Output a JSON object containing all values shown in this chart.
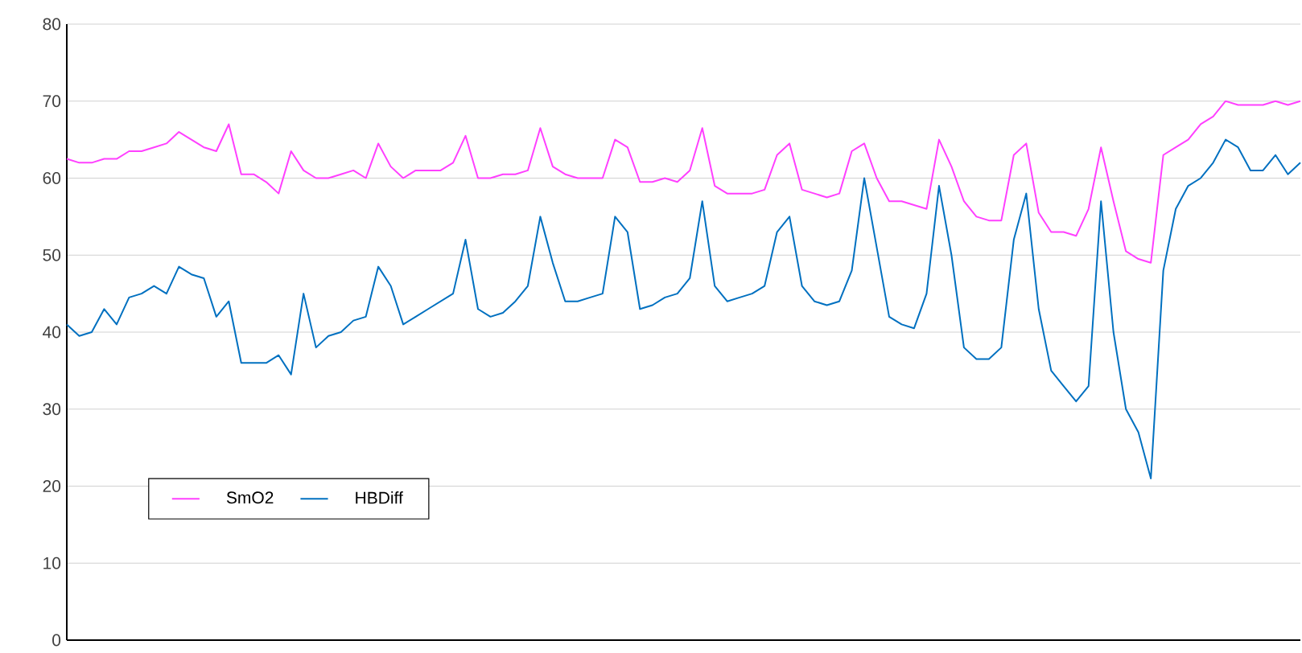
{
  "chart_data": {
    "type": "line",
    "categories": [
      null,
      null,
      null,
      null,
      null,
      null,
      null,
      null,
      null,
      null,
      null,
      null,
      null,
      null,
      null,
      null,
      null,
      null,
      null,
      null,
      null,
      null,
      null,
      null,
      null,
      null,
      null,
      null,
      null,
      null,
      null,
      null,
      null,
      null,
      null,
      null,
      null,
      null,
      null,
      null,
      null,
      null,
      null,
      null,
      null,
      null,
      null,
      null,
      null,
      null,
      null,
      null,
      null,
      null,
      null,
      null,
      null,
      null,
      null,
      null,
      null,
      null,
      null,
      null,
      null,
      null,
      null,
      null,
      null,
      null,
      null,
      null,
      null,
      null,
      null,
      null,
      null,
      null,
      null,
      null,
      null,
      null,
      null,
      null,
      null,
      null,
      null,
      null,
      null,
      null,
      null,
      null,
      null,
      null,
      null,
      null,
      null,
      null,
      null,
      null
    ],
    "series": [
      {
        "name": "SmO2",
        "color": "#ff40ff",
        "values": [
          62.5,
          62,
          62,
          62.5,
          62.5,
          63.5,
          63.5,
          64,
          64.5,
          66,
          65,
          64,
          63.5,
          67,
          60.5,
          60.5,
          59.5,
          58,
          63.5,
          61,
          60,
          60,
          60.5,
          61,
          60,
          64.5,
          61.5,
          60,
          61,
          61,
          61,
          62,
          65.5,
          60,
          60,
          60.5,
          60.5,
          61,
          66.5,
          61.5,
          60.5,
          60,
          60,
          60,
          65,
          64,
          59.5,
          59.5,
          60,
          59.5,
          61,
          66.5,
          59,
          58,
          58,
          58,
          58.5,
          63,
          64.5,
          58.5,
          58,
          57.5,
          58,
          63.5,
          64.5,
          60,
          57,
          57,
          56.5,
          56,
          65,
          61.5,
          57,
          55,
          54.5,
          54.5,
          63,
          64.5,
          55.5,
          53,
          53,
          52.5,
          56,
          64,
          57,
          50.5,
          49.5,
          49,
          63,
          64,
          65,
          67,
          68,
          70,
          69.5,
          69.5,
          69.5,
          70,
          69.5,
          70
        ]
      },
      {
        "name": "HBDiff",
        "color": "#0070c0",
        "values": [
          41,
          39.5,
          40,
          43,
          41,
          44.5,
          45,
          46,
          45,
          48.5,
          47.5,
          47,
          42,
          44,
          36,
          36,
          36,
          37,
          34.5,
          45,
          38,
          39.5,
          40,
          41.5,
          42,
          48.5,
          46,
          41,
          42,
          43,
          44,
          45,
          52,
          43,
          42,
          42.5,
          44,
          46,
          55,
          49,
          44,
          44,
          44.5,
          45,
          55,
          53,
          43,
          43.5,
          44.5,
          45,
          47,
          57,
          46,
          44,
          44.5,
          45,
          46,
          53,
          55,
          46,
          44,
          43.5,
          44,
          48,
          60,
          51,
          42,
          41,
          40.5,
          45,
          59,
          50,
          38,
          36.5,
          36.5,
          38,
          52,
          58,
          43,
          35,
          33,
          31,
          33,
          57,
          40,
          30,
          27,
          21,
          48,
          56,
          59,
          60,
          62,
          65,
          64,
          61,
          61,
          63,
          60.5,
          62
        ]
      }
    ],
    "ylim": [
      0,
      80
    ],
    "yticks": [
      0,
      10,
      20,
      30,
      40,
      50,
      60,
      70,
      80
    ],
    "grid": "y",
    "legend": "bottom left",
    "tick_labels": "y",
    "marker": "none",
    "line_style": "solid"
  }
}
